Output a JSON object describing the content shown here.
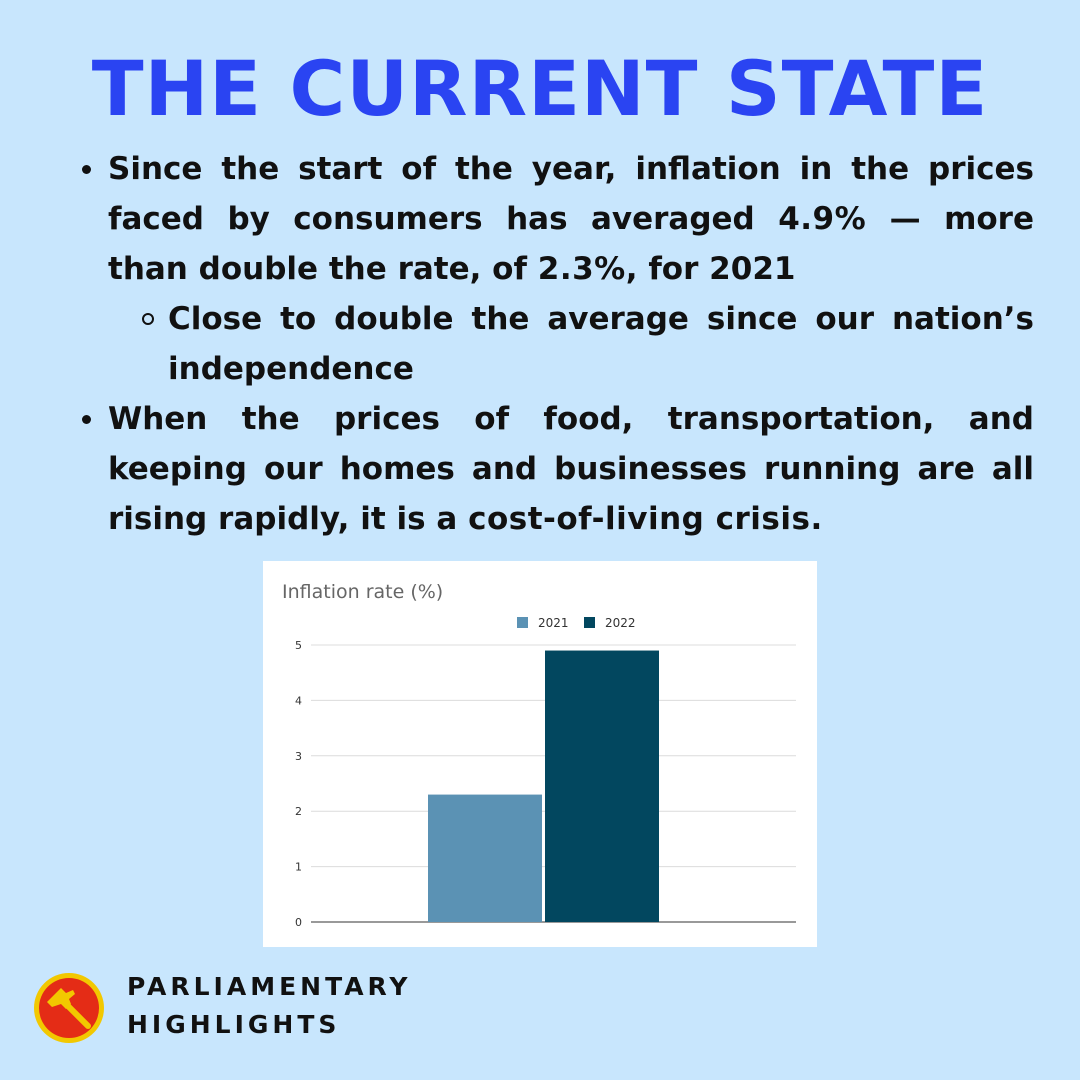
{
  "title": "THE CURRENT STATE",
  "bullets": [
    {
      "part1": "Since the start of the year, inflation in the prices faced by consumers has averaged ",
      "strong1": "4.9%",
      "part2": " — more than double the rate, of ",
      "strong2": "2.3%",
      "part3": ", for 2021"
    },
    {
      "text": "Close to double the average since our nation’s independence"
    },
    {
      "part1": "When the prices of food, transportation, and keeping our homes and businesses running are all rising rapidly, it is a ",
      "strong1": "cost-of-living crisis",
      "part2": "."
    }
  ],
  "chart_data": {
    "type": "bar",
    "title": "Inflation rate (%)",
    "categories": [
      ""
    ],
    "series": [
      {
        "name": "2021",
        "values": [
          2.3
        ],
        "color": "#5b92b4"
      },
      {
        "name": "2022",
        "values": [
          4.9
        ],
        "color": "#02475f"
      }
    ],
    "ylim": [
      0,
      5
    ],
    "yticks": [
      0,
      1,
      2,
      3,
      4,
      5
    ],
    "grid": true,
    "legend": "top-center"
  },
  "footer": {
    "line1": "PARLIAMENTARY",
    "line2": "HIGHLIGHTS",
    "logo_icon": "hammer-logo-icon",
    "logo_colors": {
      "outer": "#f2c800",
      "inner": "#e42c16",
      "hammer": "#f2c800"
    }
  }
}
